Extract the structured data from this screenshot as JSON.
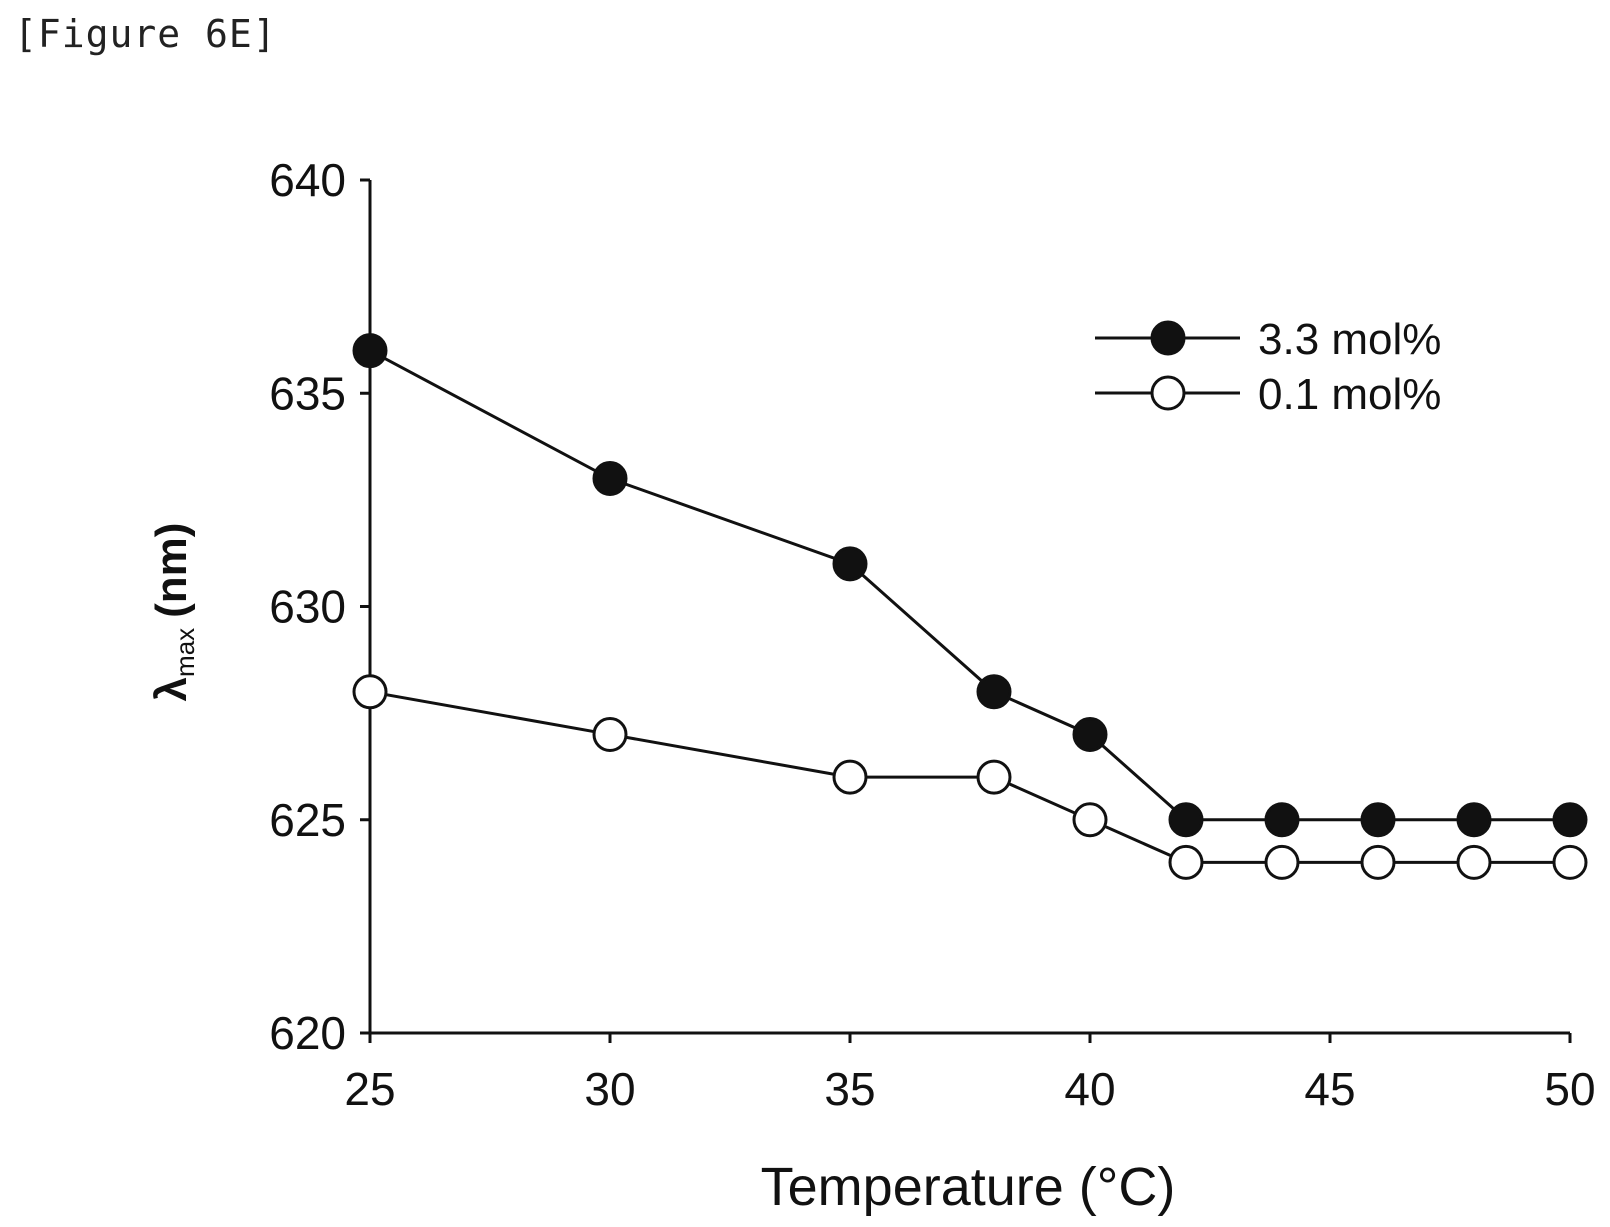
{
  "figure_label": "[Figure 6E]",
  "chart_data": {
    "type": "line",
    "xlabel": "Temperature (°C)",
    "ylabel": {
      "symbol": "λ",
      "subscript": "max",
      "unit": "(nm)"
    },
    "xlim": [
      25,
      50
    ],
    "ylim": [
      620,
      640
    ],
    "xticks": [
      25,
      30,
      35,
      40,
      45,
      50
    ],
    "yticks": [
      620,
      625,
      630,
      635,
      640
    ],
    "grid": false,
    "legend_position": "top-right",
    "series": [
      {
        "name": "3.3 mol%",
        "marker": "filled-circle",
        "color": "#111111",
        "x": [
          25,
          30,
          35,
          38,
          40,
          42,
          44,
          46,
          48,
          50
        ],
        "y": [
          636,
          633,
          631,
          628,
          627,
          625,
          625,
          625,
          625,
          625
        ]
      },
      {
        "name": "0.1 mol%",
        "marker": "open-circle",
        "color": "#111111",
        "x": [
          25,
          30,
          35,
          38,
          40,
          42,
          44,
          46,
          48,
          50
        ],
        "y": [
          628,
          627,
          626,
          626,
          625,
          624,
          624,
          624,
          624,
          624
        ]
      }
    ]
  }
}
